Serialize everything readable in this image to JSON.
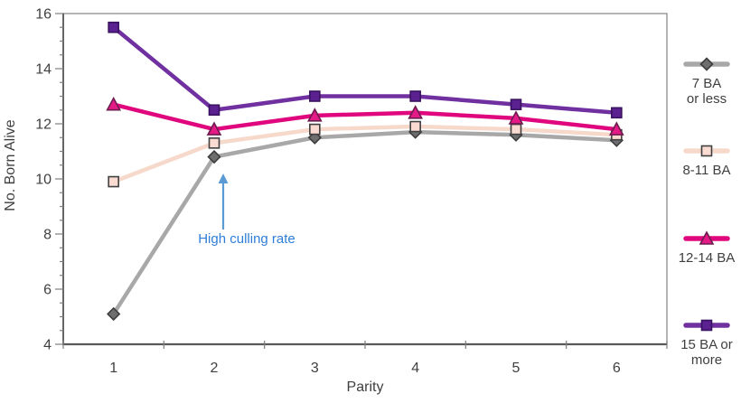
{
  "chart_data": {
    "type": "line",
    "title": "",
    "xlabel": "Parity",
    "ylabel": "No. Born Alive",
    "x": [
      1,
      2,
      3,
      4,
      5,
      6
    ],
    "ylim": [
      4,
      16
    ],
    "y_major_ticks": [
      4,
      6,
      8,
      10,
      12,
      14,
      16
    ],
    "y_minor_step": 0.5,
    "grid": false,
    "legend_position": "right",
    "series": [
      {
        "name": "7 BA or less",
        "marker": "diamond",
        "line_color": "#a8a8a8",
        "marker_fill": "#6e6e6e",
        "marker_stroke": "#3d3d3d",
        "values": [
          5.1,
          10.8,
          11.5,
          11.7,
          11.6,
          11.4
        ]
      },
      {
        "name": "8-11 BA",
        "marker": "square",
        "line_color": "#f7d9cc",
        "marker_fill": "#fadbd2",
        "marker_stroke": "#404040",
        "values": [
          9.9,
          11.3,
          11.8,
          11.9,
          11.8,
          11.6
        ]
      },
      {
        "name": "12-14 BA",
        "marker": "triangle",
        "line_color": "#e0067e",
        "marker_fill": "#e41a86",
        "marker_stroke": "#6d1b4e",
        "values": [
          12.7,
          11.8,
          12.3,
          12.4,
          12.2,
          11.8
        ]
      },
      {
        "name": "15 BA or more",
        "marker": "square",
        "line_color": "#7030a0",
        "marker_fill": "#5c2191",
        "marker_stroke": "#38135f",
        "values": [
          15.5,
          12.5,
          13.0,
          13.0,
          12.7,
          12.4
        ]
      }
    ],
    "legend_labels": [
      [
        "7 BA",
        "or less"
      ],
      [
        "8-11 BA"
      ],
      [
        "12-14 BA"
      ],
      [
        "15 BA or",
        "more"
      ]
    ],
    "annotation": {
      "text": "High culling rate",
      "text_color": "#2e7dd9",
      "arrow_color": "#5b9bd5"
    },
    "axis_text_color": "#3f3f3f"
  }
}
